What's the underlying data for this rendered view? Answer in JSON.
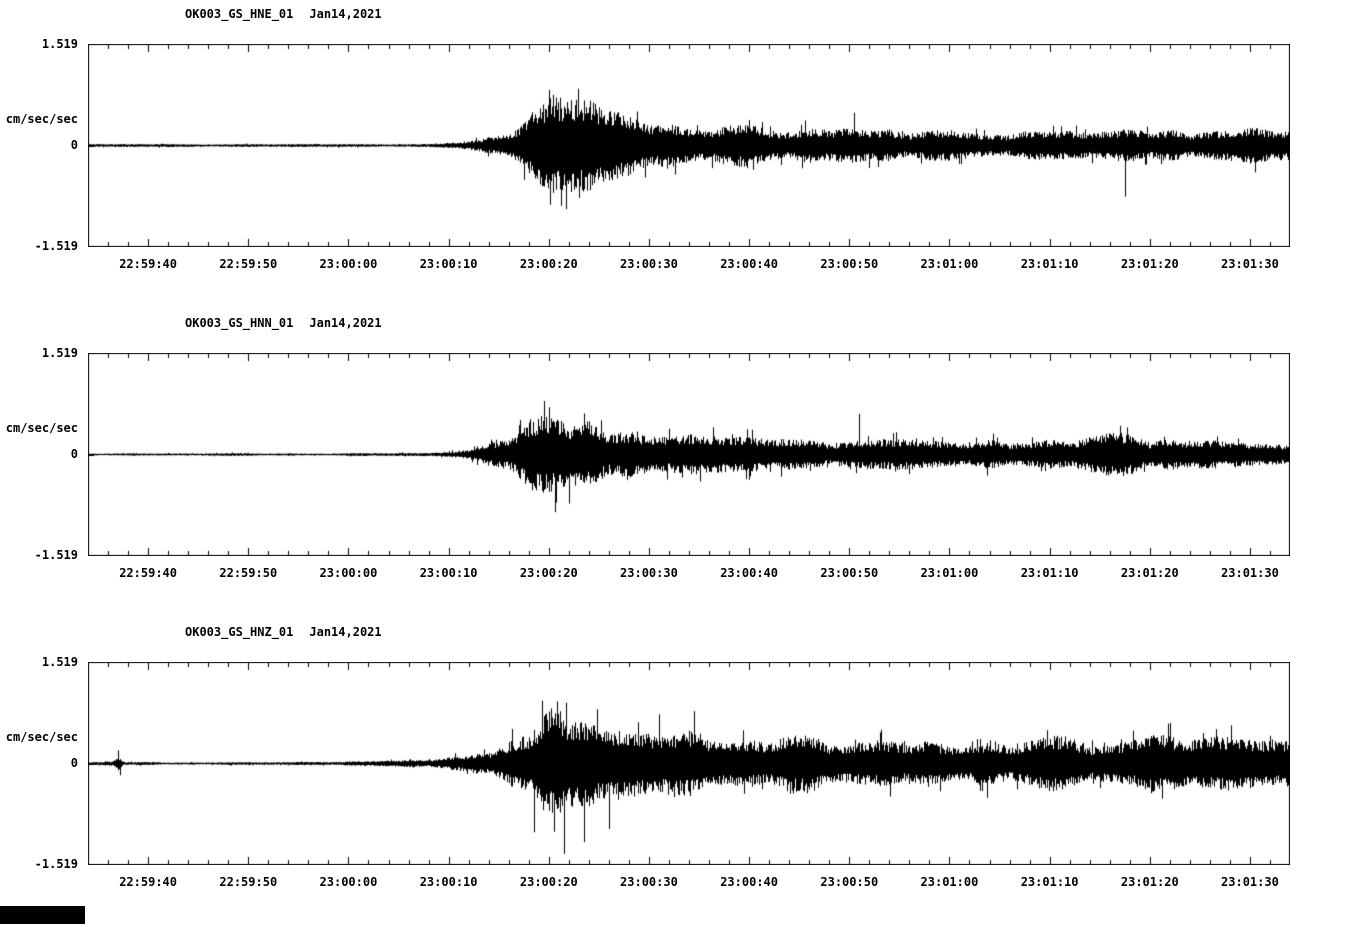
{
  "page": {
    "background": "#ffffff",
    "trace_color": "#000000"
  },
  "y_axis": {
    "units": "cm/sec/sec",
    "max_label": "1.519",
    "zero_label": "0",
    "min_label": "-1.519"
  },
  "chart_data": {
    "type": "line",
    "subtype": "seismogram-waveform",
    "station": "OK003",
    "network": "GS",
    "date": "Jan14,2021",
    "ylim": [
      -1.519,
      1.519
    ],
    "y_units": "cm/sec/sec",
    "time_window_start": "22:59:34",
    "time_window_end": "23:01:34",
    "duration_s": 120,
    "x_tick_labels": [
      "22:59:40",
      "22:59:50",
      "23:00:00",
      "23:00:10",
      "23:00:20",
      "23:00:30",
      "23:00:40",
      "23:00:50",
      "23:01:00",
      "23:01:10",
      "23:01:20",
      "23:01:30"
    ],
    "x_tick_offsets_s": [
      6,
      16,
      26,
      36,
      46,
      56,
      66,
      76,
      86,
      96,
      106,
      116
    ],
    "minor_tick_step_s": 2,
    "event_note": "quiet background until ~23:00:08, strong arrival peaking ~23:00:20, long coda to end of window",
    "panels": [
      {
        "title": "OK003_GS_HNE_01",
        "date": "Jan14,2021",
        "channel": "HNE",
        "seed": 11,
        "envelope": [
          [
            0,
            0.022
          ],
          [
            20,
            0.02
          ],
          [
            30,
            0.02
          ],
          [
            34,
            0.028
          ],
          [
            37,
            0.05
          ],
          [
            39,
            0.09
          ],
          [
            41,
            0.16
          ],
          [
            43,
            0.3
          ],
          [
            45,
            0.55
          ],
          [
            46,
            0.72
          ],
          [
            48,
            0.75
          ],
          [
            50,
            0.58
          ],
          [
            52,
            0.48
          ],
          [
            54,
            0.4
          ],
          [
            56,
            0.34
          ],
          [
            60,
            0.3
          ],
          [
            64,
            0.28
          ],
          [
            68,
            0.26
          ],
          [
            72,
            0.24
          ],
          [
            76,
            0.27
          ],
          [
            78,
            0.22
          ],
          [
            82,
            0.2
          ],
          [
            86,
            0.2
          ],
          [
            90,
            0.21
          ],
          [
            94,
            0.2
          ],
          [
            98,
            0.22
          ],
          [
            102,
            0.22
          ],
          [
            106,
            0.25
          ],
          [
            110,
            0.22
          ],
          [
            114,
            0.22
          ],
          [
            118,
            0.24
          ],
          [
            120,
            0.23
          ]
        ],
        "spikes": [
          {
            "t": 46,
            "a": 0.85
          },
          {
            "t": 47.2,
            "a": -0.92
          },
          {
            "t": 49,
            "a": -0.8
          },
          {
            "t": 76.5,
            "a": 0.5
          },
          {
            "t": 103.5,
            "a": -0.78
          }
        ]
      },
      {
        "title": "OK003_GS_HNN_01",
        "date": "Jan14,2021",
        "channel": "HNN",
        "seed": 23,
        "envelope": [
          [
            0,
            0.018
          ],
          [
            25,
            0.017
          ],
          [
            32,
            0.022
          ],
          [
            36,
            0.04
          ],
          [
            38,
            0.07
          ],
          [
            40,
            0.13
          ],
          [
            42,
            0.26
          ],
          [
            44,
            0.45
          ],
          [
            46,
            0.7
          ],
          [
            48,
            0.56
          ],
          [
            50,
            0.44
          ],
          [
            52,
            0.37
          ],
          [
            55,
            0.3
          ],
          [
            58,
            0.27
          ],
          [
            62,
            0.24
          ],
          [
            66,
            0.22
          ],
          [
            70,
            0.2
          ],
          [
            74,
            0.2
          ],
          [
            77,
            0.24
          ],
          [
            80,
            0.19
          ],
          [
            84,
            0.18
          ],
          [
            88,
            0.18
          ],
          [
            92,
            0.19
          ],
          [
            96,
            0.2
          ],
          [
            100,
            0.25
          ],
          [
            103,
            0.28
          ],
          [
            106,
            0.25
          ],
          [
            110,
            0.2
          ],
          [
            114,
            0.2
          ],
          [
            120,
            0.21
          ]
        ],
        "spikes": [
          {
            "t": 46,
            "a": 0.72
          },
          {
            "t": 46.6,
            "a": -0.88
          },
          {
            "t": 48,
            "a": -0.75
          },
          {
            "t": 77,
            "a": 0.62
          }
        ]
      },
      {
        "title": "OK003_GS_HNZ_01",
        "date": "Jan14,2021",
        "channel": "HNZ",
        "seed": 37,
        "envelope": [
          [
            0,
            0.02
          ],
          [
            2.5,
            0.03
          ],
          [
            3,
            0.1
          ],
          [
            3.5,
            0.03
          ],
          [
            8,
            0.016
          ],
          [
            20,
            0.02
          ],
          [
            28,
            0.03
          ],
          [
            32,
            0.045
          ],
          [
            35,
            0.07
          ],
          [
            38,
            0.12
          ],
          [
            40,
            0.2
          ],
          [
            42,
            0.34
          ],
          [
            44,
            0.55
          ],
          [
            46,
            0.78
          ],
          [
            47,
            0.85
          ],
          [
            49,
            0.66
          ],
          [
            51,
            0.58
          ],
          [
            53,
            0.52
          ],
          [
            56,
            0.46
          ],
          [
            58,
            0.44
          ],
          [
            60,
            0.4
          ],
          [
            63,
            0.36
          ],
          [
            66,
            0.36
          ],
          [
            69,
            0.38
          ],
          [
            72,
            0.37
          ],
          [
            75,
            0.36
          ],
          [
            78,
            0.34
          ],
          [
            81,
            0.3
          ],
          [
            84,
            0.3
          ],
          [
            87,
            0.32
          ],
          [
            90,
            0.33
          ],
          [
            93,
            0.34
          ],
          [
            96,
            0.34
          ],
          [
            99,
            0.33
          ],
          [
            102,
            0.34
          ],
          [
            105,
            0.38
          ],
          [
            108,
            0.42
          ],
          [
            110,
            0.37
          ],
          [
            113,
            0.36
          ],
          [
            116,
            0.38
          ],
          [
            120,
            0.38
          ]
        ],
        "spikes": [
          {
            "t": 3,
            "a": 0.2
          },
          {
            "t": 3.2,
            "a": -0.18
          },
          {
            "t": 44.5,
            "a": -1.05
          },
          {
            "t": 46.8,
            "a": 0.95
          },
          {
            "t": 47.5,
            "a": -1.38
          },
          {
            "t": 49.5,
            "a": -1.2
          },
          {
            "t": 52,
            "a": -1.0
          },
          {
            "t": 57,
            "a": 0.75
          },
          {
            "t": 60.5,
            "a": 0.8
          },
          {
            "t": 108,
            "a": 0.62
          }
        ]
      }
    ]
  }
}
